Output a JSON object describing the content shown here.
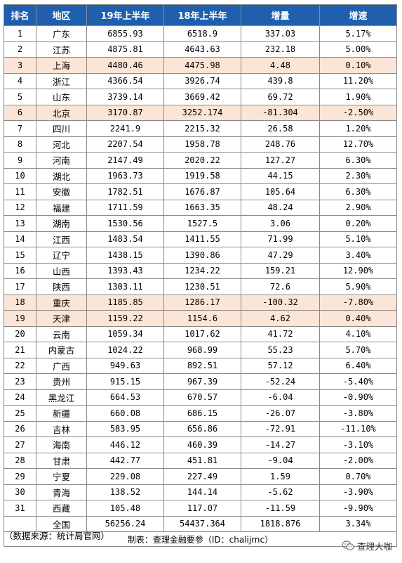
{
  "table": {
    "headers": [
      "排名",
      "地区",
      "19年上半年",
      "18年上半年",
      "增量",
      "增速"
    ],
    "highlight_color": "#fbe5d6",
    "header_color": "#1f5fae",
    "rows": [
      {
        "rank": "1",
        "region": "广东",
        "y19": "6855.93",
        "y18": "6518.9",
        "inc": "337.03",
        "rate": "5.17%",
        "hl": false
      },
      {
        "rank": "2",
        "region": "江苏",
        "y19": "4875.81",
        "y18": "4643.63",
        "inc": "232.18",
        "rate": "5.00%",
        "hl": false
      },
      {
        "rank": "3",
        "region": "上海",
        "y19": "4480.46",
        "y18": "4475.98",
        "inc": "4.48",
        "rate": "0.10%",
        "hl": true
      },
      {
        "rank": "4",
        "region": "浙江",
        "y19": "4366.54",
        "y18": "3926.74",
        "inc": "439.8",
        "rate": "11.20%",
        "hl": false
      },
      {
        "rank": "5",
        "region": "山东",
        "y19": "3739.14",
        "y18": "3669.42",
        "inc": "69.72",
        "rate": "1.90%",
        "hl": false
      },
      {
        "rank": "6",
        "region": "北京",
        "y19": "3170.87",
        "y18": "3252.174",
        "inc": "-81.304",
        "rate": "-2.50%",
        "hl": true
      },
      {
        "rank": "7",
        "region": "四川",
        "y19": "2241.9",
        "y18": "2215.32",
        "inc": "26.58",
        "rate": "1.20%",
        "hl": false
      },
      {
        "rank": "8",
        "region": "河北",
        "y19": "2207.54",
        "y18": "1958.78",
        "inc": "248.76",
        "rate": "12.70%",
        "hl": false
      },
      {
        "rank": "9",
        "region": "河南",
        "y19": "2147.49",
        "y18": "2020.22",
        "inc": "127.27",
        "rate": "6.30%",
        "hl": false
      },
      {
        "rank": "10",
        "region": "湖北",
        "y19": "1963.73",
        "y18": "1919.58",
        "inc": "44.15",
        "rate": "2.30%",
        "hl": false
      },
      {
        "rank": "11",
        "region": "安徽",
        "y19": "1782.51",
        "y18": "1676.87",
        "inc": "105.64",
        "rate": "6.30%",
        "hl": false
      },
      {
        "rank": "12",
        "region": "福建",
        "y19": "1711.59",
        "y18": "1663.35",
        "inc": "48.24",
        "rate": "2.90%",
        "hl": false
      },
      {
        "rank": "13",
        "region": "湖南",
        "y19": "1530.56",
        "y18": "1527.5",
        "inc": "3.06",
        "rate": "0.20%",
        "hl": false
      },
      {
        "rank": "14",
        "region": "江西",
        "y19": "1483.54",
        "y18": "1411.55",
        "inc": "71.99",
        "rate": "5.10%",
        "hl": false
      },
      {
        "rank": "15",
        "region": "辽宁",
        "y19": "1438.15",
        "y18": "1390.86",
        "inc": "47.29",
        "rate": "3.40%",
        "hl": false
      },
      {
        "rank": "16",
        "region": "山西",
        "y19": "1393.43",
        "y18": "1234.22",
        "inc": "159.21",
        "rate": "12.90%",
        "hl": false
      },
      {
        "rank": "17",
        "region": "陕西",
        "y19": "1303.11",
        "y18": "1230.51",
        "inc": "72.6",
        "rate": "5.90%",
        "hl": false
      },
      {
        "rank": "18",
        "region": "重庆",
        "y19": "1185.85",
        "y18": "1286.17",
        "inc": "-100.32",
        "rate": "-7.80%",
        "hl": true
      },
      {
        "rank": "19",
        "region": "天津",
        "y19": "1159.22",
        "y18": "1154.6",
        "inc": "4.62",
        "rate": "0.40%",
        "hl": true
      },
      {
        "rank": "20",
        "region": "云南",
        "y19": "1059.34",
        "y18": "1017.62",
        "inc": "41.72",
        "rate": "4.10%",
        "hl": false
      },
      {
        "rank": "21",
        "region": "内蒙古",
        "y19": "1024.22",
        "y18": "968.99",
        "inc": "55.23",
        "rate": "5.70%",
        "hl": false
      },
      {
        "rank": "22",
        "region": "广西",
        "y19": "949.63",
        "y18": "892.51",
        "inc": "57.12",
        "rate": "6.40%",
        "hl": false
      },
      {
        "rank": "23",
        "region": "贵州",
        "y19": "915.15",
        "y18": "967.39",
        "inc": "-52.24",
        "rate": "-5.40%",
        "hl": false
      },
      {
        "rank": "24",
        "region": "黑龙江",
        "y19": "664.53",
        "y18": "670.57",
        "inc": "-6.04",
        "rate": "-0.90%",
        "hl": false
      },
      {
        "rank": "25",
        "region": "新疆",
        "y19": "660.08",
        "y18": "686.15",
        "inc": "-26.07",
        "rate": "-3.80%",
        "hl": false
      },
      {
        "rank": "26",
        "region": "吉林",
        "y19": "583.95",
        "y18": "656.86",
        "inc": "-72.91",
        "rate": "-11.10%",
        "hl": false
      },
      {
        "rank": "27",
        "region": "海南",
        "y19": "446.12",
        "y18": "460.39",
        "inc": "-14.27",
        "rate": "-3.10%",
        "hl": false
      },
      {
        "rank": "28",
        "region": "甘肃",
        "y19": "442.77",
        "y18": "451.81",
        "inc": "-9.04",
        "rate": "-2.00%",
        "hl": false
      },
      {
        "rank": "29",
        "region": "宁夏",
        "y19": "229.08",
        "y18": "227.49",
        "inc": "1.59",
        "rate": "0.70%",
        "hl": false
      },
      {
        "rank": "30",
        "region": "青海",
        "y19": "138.52",
        "y18": "144.14",
        "inc": "-5.62",
        "rate": "-3.90%",
        "hl": false
      },
      {
        "rank": "31",
        "region": "西藏",
        "y19": "105.48",
        "y18": "117.07",
        "inc": "-11.59",
        "rate": "-9.90%",
        "hl": false
      },
      {
        "rank": "",
        "region": "全国",
        "y19": "56256.24",
        "y18": "54437.364",
        "inc": "1818.876",
        "rate": "3.34%",
        "hl": false
      }
    ],
    "note": "制表：查理金融要参（ID：chalijrnc）"
  },
  "source": "（数据来源：统计局官网）",
  "brand": {
    "label": "查理大咖",
    "icon": "wechat-icon"
  }
}
